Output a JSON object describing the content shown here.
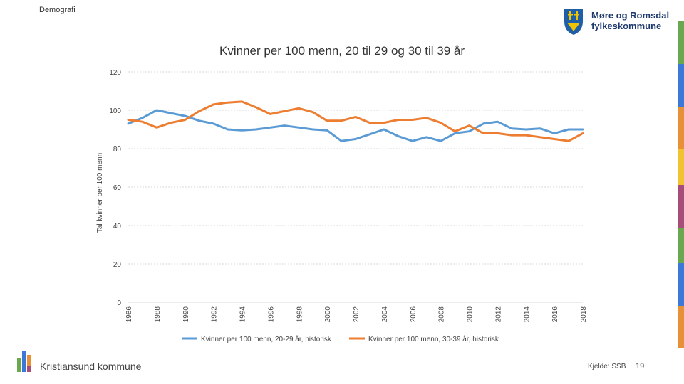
{
  "header": {
    "section": "Demografi"
  },
  "logo": {
    "line1": "Møre og Romsdal",
    "line2": "fylkeskommune"
  },
  "footer": {
    "org": "Kristiansund kommune",
    "source": "Kjelde: SSB",
    "page": "19"
  },
  "colors": {
    "blue": "#5b9bd5",
    "orange": "#ed7d31",
    "grid": "#d9d9d9"
  },
  "chart_data": {
    "type": "line",
    "title": "Kvinner per 100 menn, 20 til 29 og 30 til 39 år",
    "xlabel": "",
    "ylabel": "Tal kvinner per 100 menn",
    "ylim": [
      0,
      120
    ],
    "yticks": [
      0,
      20,
      40,
      60,
      80,
      100,
      120
    ],
    "x": [
      1986,
      1987,
      1988,
      1989,
      1990,
      1991,
      1992,
      1993,
      1994,
      1995,
      1996,
      1997,
      1998,
      1999,
      2000,
      2001,
      2002,
      2003,
      2004,
      2005,
      2006,
      2007,
      2008,
      2009,
      2010,
      2011,
      2012,
      2013,
      2014,
      2015,
      2016,
      2017,
      2018
    ],
    "xticks": [
      "1986",
      "1988",
      "1990",
      "1992",
      "1994",
      "1996",
      "1998",
      "2000",
      "2002",
      "2004",
      "2006",
      "2008",
      "2010",
      "2012",
      "2014",
      "2016",
      "2018"
    ],
    "series": [
      {
        "name": "Kvinner per 100 menn, 20-29 år, historisk",
        "color": "#5b9bd5",
        "values": [
          93,
          96,
          100,
          98.5,
          97,
          94.5,
          93,
          90,
          89.5,
          90,
          91,
          92,
          91,
          90,
          89.5,
          84,
          85,
          87.5,
          90,
          86.5,
          84,
          86,
          84,
          88,
          89,
          93,
          94,
          90.5,
          90,
          90.5,
          88,
          90,
          90
        ]
      },
      {
        "name": "Kvinner per 100 menn, 30-39 år, historisk",
        "color": "#ed7d31",
        "values": [
          95,
          94,
          91,
          93.5,
          95,
          99.5,
          103,
          104,
          104.5,
          101.5,
          98,
          99.5,
          101,
          99,
          94.5,
          94.5,
          96.5,
          93.5,
          93.5,
          95,
          95,
          96,
          93.5,
          89,
          92,
          88,
          88,
          87,
          87,
          86,
          85,
          84,
          88
        ]
      }
    ],
    "legend_position": "bottom"
  }
}
